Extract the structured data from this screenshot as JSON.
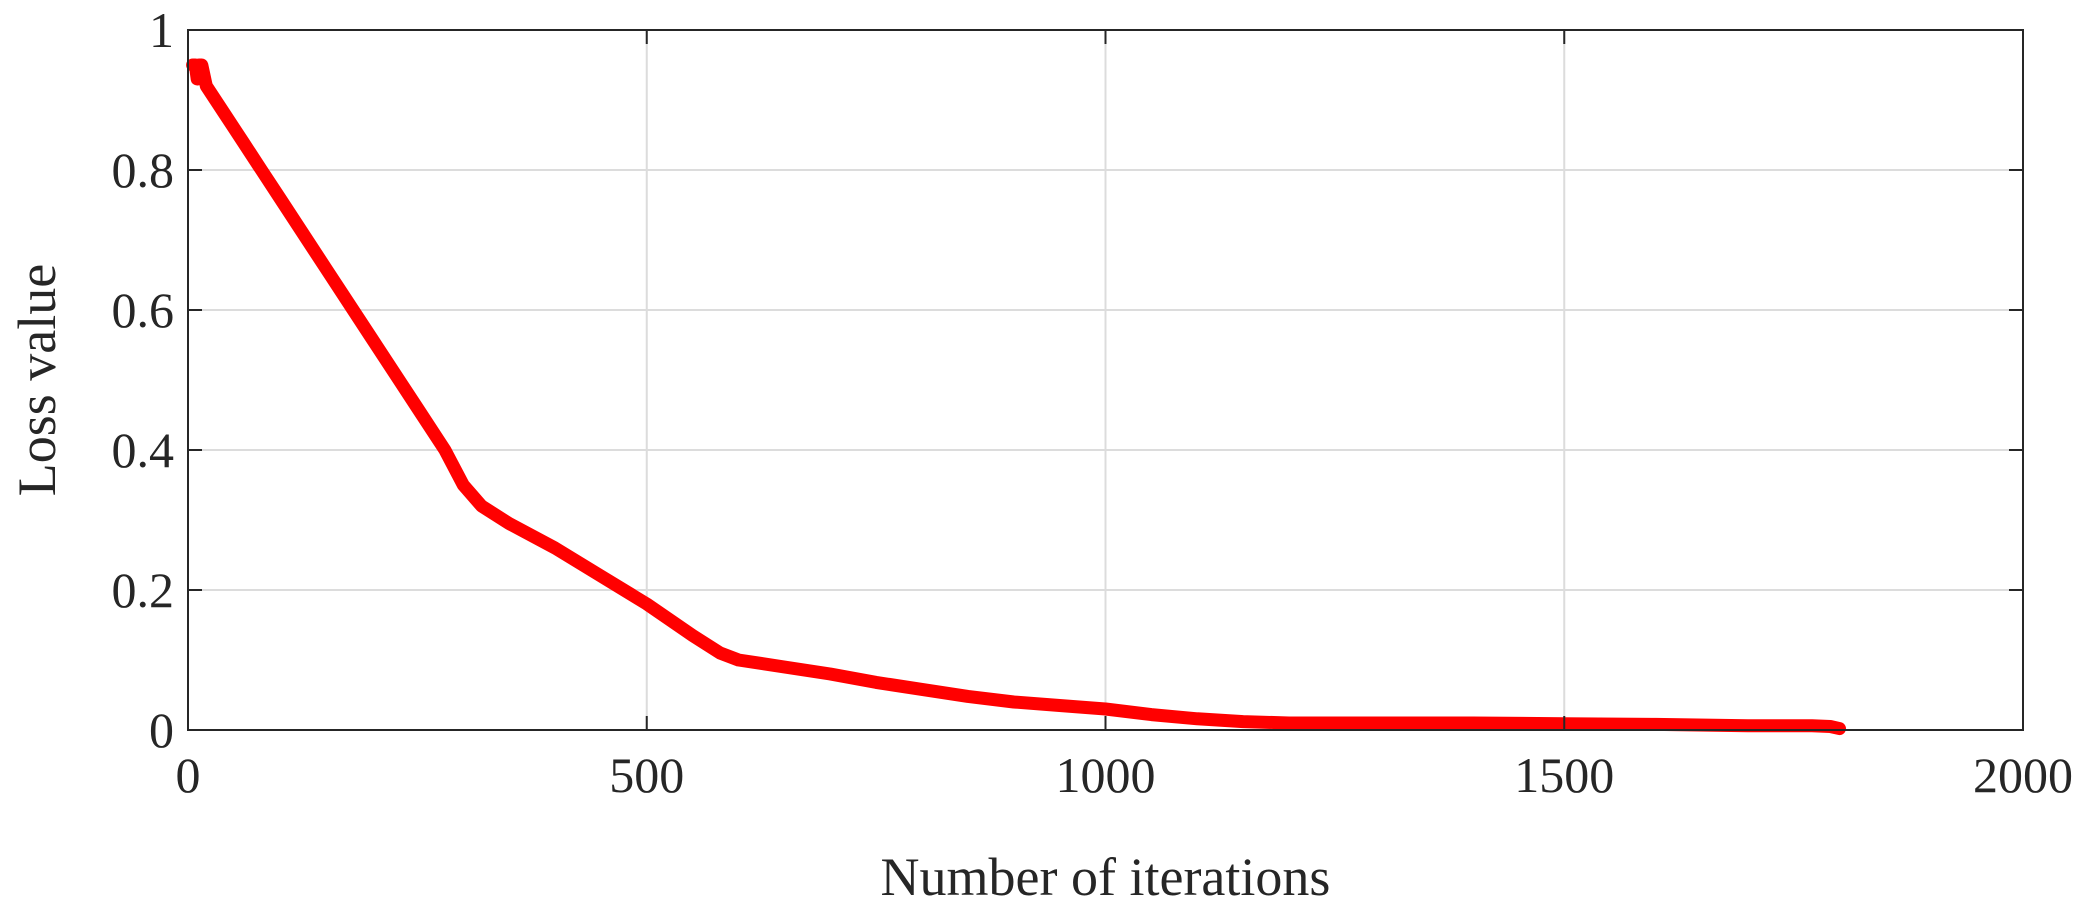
{
  "chart_data": {
    "type": "line",
    "title": "",
    "xlabel": "Number of iterations",
    "ylabel": "Loss value",
    "xlim": [
      0,
      2000
    ],
    "ylim": [
      0,
      1
    ],
    "xticks": [
      0,
      500,
      1000,
      1500,
      2000
    ],
    "yticks": [
      0,
      0.2,
      0.4,
      0.6,
      0.8,
      1
    ],
    "xtick_labels": [
      "0",
      "500",
      "1000",
      "1500",
      "2000"
    ],
    "ytick_labels": [
      "0",
      "0.2",
      "0.4",
      "0.6",
      "0.8",
      "1"
    ],
    "grid": true,
    "series": [
      {
        "color": "#ff0000",
        "x": [
          5,
          8,
          10,
          12,
          15,
          20,
          40,
          60,
          80,
          100,
          150,
          200,
          250,
          280,
          300,
          320,
          350,
          400,
          450,
          500,
          550,
          580,
          600,
          650,
          700,
          750,
          800,
          850,
          900,
          950,
          1000,
          1050,
          1100,
          1150,
          1200,
          1300,
          1400,
          1500,
          1600,
          1700,
          1770,
          1790,
          1800
        ],
        "y": [
          0.95,
          0.95,
          0.93,
          0.95,
          0.95,
          0.92,
          0.88,
          0.84,
          0.8,
          0.76,
          0.66,
          0.56,
          0.46,
          0.4,
          0.35,
          0.32,
          0.295,
          0.26,
          0.22,
          0.18,
          0.135,
          0.11,
          0.1,
          0.09,
          0.08,
          0.068,
          0.058,
          0.048,
          0.04,
          0.035,
          0.03,
          0.022,
          0.016,
          0.012,
          0.01,
          0.01,
          0.01,
          0.009,
          0.008,
          0.006,
          0.006,
          0.005,
          0.002
        ]
      }
    ]
  }
}
